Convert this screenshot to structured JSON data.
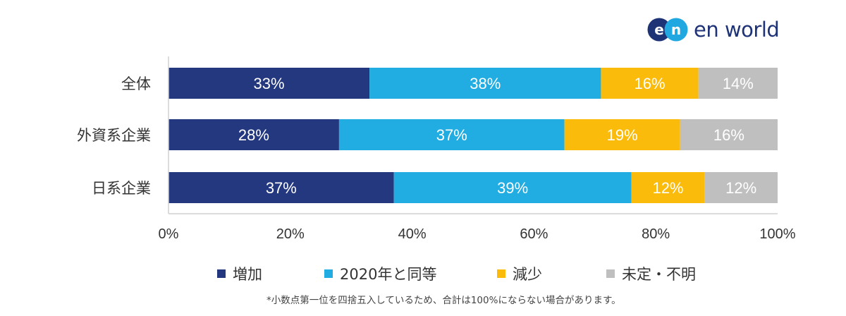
{
  "brand": {
    "logo_mark": "en",
    "logo_text": "en world"
  },
  "chart_data": {
    "type": "bar",
    "orientation": "horizontal",
    "stacked": true,
    "categories": [
      "全体",
      "外資系企業",
      "日系企業"
    ],
    "series": [
      {
        "name": "増加",
        "color": "#243880",
        "values": [
          33,
          28,
          37
        ]
      },
      {
        "name": "2020年と同等",
        "color": "#21ade1",
        "values": [
          38,
          37,
          39
        ]
      },
      {
        "name": "減少",
        "color": "#fbbb0a",
        "values": [
          16,
          19,
          12
        ]
      },
      {
        "name": "未定・不明",
        "color": "#bfbfbf",
        "values": [
          14,
          16,
          12
        ]
      }
    ],
    "data_labels": [
      [
        "33%",
        "28%",
        "37%"
      ],
      [
        "38%",
        "37%",
        "39%"
      ],
      [
        "16%",
        "19%",
        "12%"
      ],
      [
        "14%",
        "16%",
        "12%"
      ]
    ],
    "xlim": [
      0,
      100
    ],
    "x_ticks": [
      0,
      20,
      40,
      60,
      80,
      100
    ],
    "x_tick_labels": [
      "0%",
      "20%",
      "40%",
      "60%",
      "80%",
      "100%"
    ],
    "grid": false,
    "legend_position": "bottom",
    "note": "*小数点第一位を四捨五入しているため、合計は100%にならない場合があります。"
  }
}
